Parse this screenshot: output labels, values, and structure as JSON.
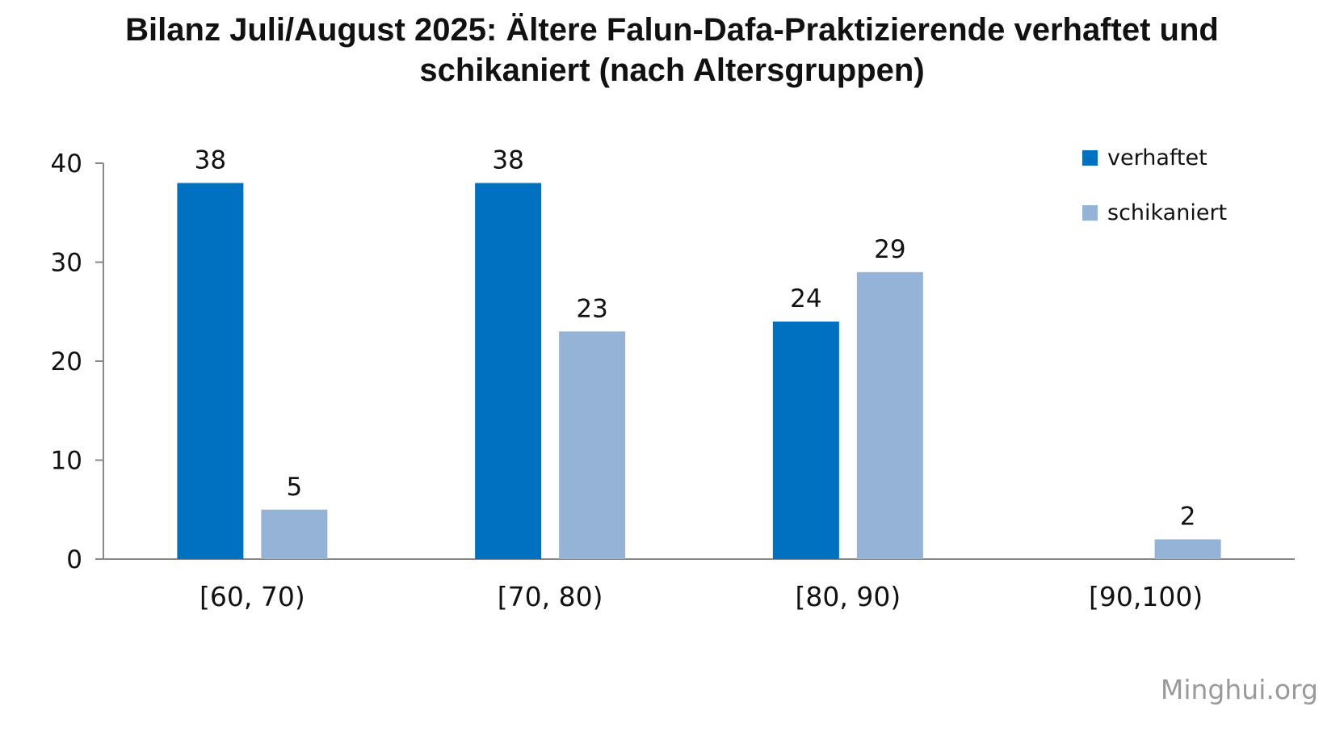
{
  "chart_data": {
    "type": "bar",
    "title_lines": [
      "Bilanz Juli/August 2025: Ältere Falun-Dafa-Praktizierende verhaftet und",
      "schikaniert (nach Altersgruppen)"
    ],
    "xlabel": "",
    "ylabel": "",
    "categories": [
      "[60, 70)",
      "[70, 80)",
      "[80, 90)",
      "[90,100)"
    ],
    "series": [
      {
        "name": "verhaftet",
        "color": "#0070C0",
        "values": [
          38,
          38,
          24,
          null
        ]
      },
      {
        "name": "schikaniert",
        "color": "#95B3D7",
        "values": [
          5,
          23,
          29,
          2
        ]
      }
    ],
    "ylim": [
      0,
      40
    ],
    "yticks": [
      0,
      10,
      20,
      30,
      40
    ],
    "grid": false,
    "legend_position": "top-right",
    "data_labels": true
  },
  "watermark": "Minghui.org"
}
